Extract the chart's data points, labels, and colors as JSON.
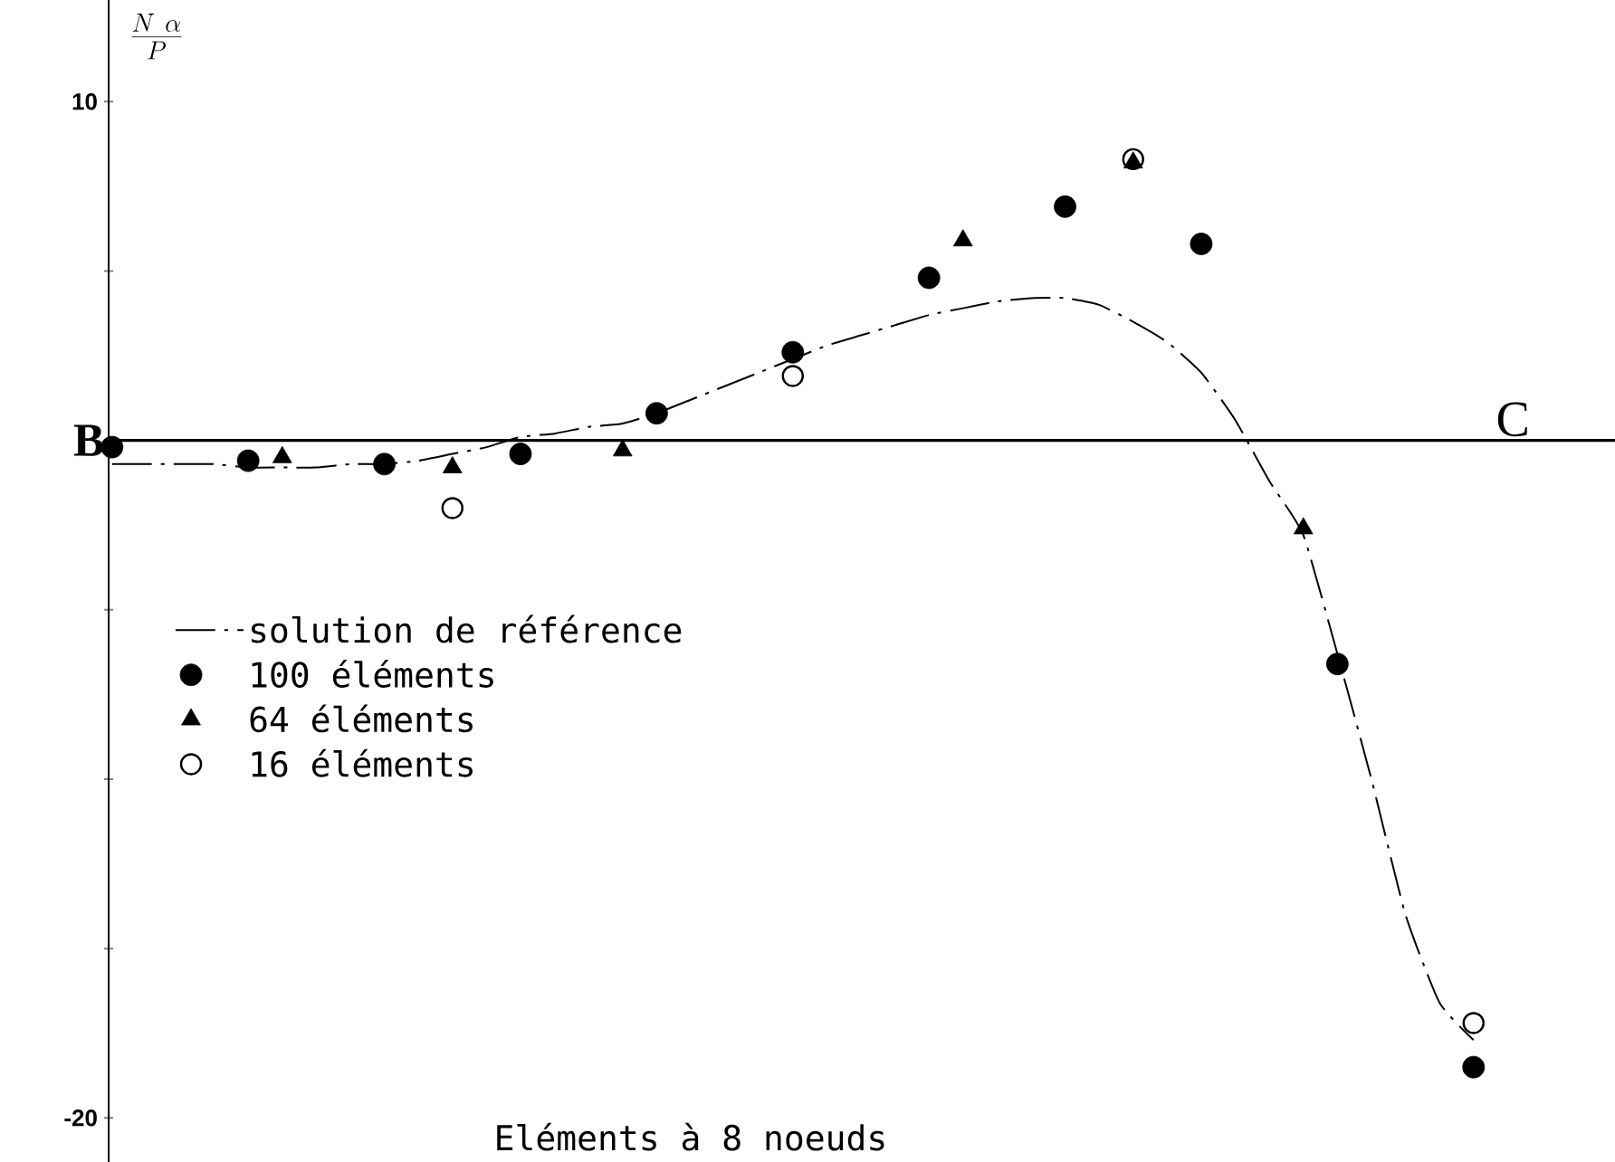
{
  "chart_data": {
    "type": "scatter",
    "ylabel": "\\frac{N\\ \\alpha}{P}",
    "categories": [
      null,
      null,
      null,
      null,
      null,
      null,
      null,
      null,
      null,
      null,
      null,
      null,
      null,
      null,
      null,
      null,
      null,
      null,
      null,
      null,
      null,
      null,
      null,
      null,
      null,
      null,
      null,
      null,
      null,
      null,
      null,
      null,
      null,
      null,
      null,
      null,
      null,
      null,
      null,
      null,
      null
    ],
    "ylim": [
      -21.3,
      13
    ],
    "yticks": [
      {
        "value": -20,
        "label": "-20"
      },
      {
        "value": -15,
        "label": null
      },
      {
        "value": -10,
        "label": null
      },
      {
        "value": -5,
        "label": null
      },
      {
        "value": 0,
        "label": null
      },
      {
        "value": 5,
        "label": null
      },
      {
        "value": 10,
        "label": "10"
      }
    ],
    "tick_labels": "y",
    "legend": "left",
    "ref_lines": [
      {
        "axis": "y",
        "value": 0
      }
    ],
    "annotations": [
      "B",
      "C",
      "Eléments à 8 noeuds"
    ],
    "series": [
      {
        "name": "solution de référence",
        "type": "line",
        "color": "#000000",
        "line_style": "dashed",
        "marker": "none",
        "values": [
          -0.7,
          -0.7,
          -0.7,
          -0.7,
          -0.8,
          -0.8,
          -0.8,
          -0.7,
          -0.7,
          -0.6,
          -0.4,
          -0.2,
          0.1,
          0.2,
          0.4,
          0.5,
          0.8,
          1.2,
          1.6,
          2.0,
          2.4,
          2.8,
          3.1,
          3.4,
          3.7,
          3.9,
          4.1,
          4.2,
          4.2,
          4.0,
          3.5,
          2.9,
          2.0,
          0.6,
          -1.2,
          -2.8,
          -6.3,
          -10,
          -14,
          -16.6,
          -17.7
        ]
      },
      {
        "name": "100 éléments",
        "type": "scatter",
        "color": "#000000",
        "marker": "circle",
        "values": [
          -0.2,
          null,
          null,
          null,
          -0.6,
          null,
          null,
          null,
          -0.7,
          null,
          null,
          null,
          -0.4,
          null,
          null,
          null,
          0.8,
          null,
          null,
          null,
          2.6,
          null,
          null,
          null,
          4.8,
          null,
          null,
          null,
          6.9,
          null,
          null,
          null,
          5.8,
          null,
          null,
          null,
          -6.6,
          null,
          null,
          null,
          -18.5
        ]
      },
      {
        "name": "64 éléments",
        "type": "scatter",
        "color": "#000000",
        "marker": "triangle",
        "values": [
          null,
          null,
          null,
          null,
          null,
          -0.5,
          null,
          null,
          null,
          null,
          -0.8,
          null,
          null,
          null,
          null,
          -0.3,
          null,
          null,
          null,
          null,
          null,
          null,
          null,
          null,
          null,
          5.9,
          null,
          null,
          null,
          null,
          8.2,
          null,
          null,
          null,
          null,
          -2.6,
          null,
          null,
          null,
          null,
          null
        ]
      },
      {
        "name": "16 éléments",
        "type": "scatter",
        "color": "#000000",
        "marker": "circle-open",
        "values": [
          null,
          null,
          null,
          null,
          null,
          null,
          null,
          null,
          null,
          null,
          -2.0,
          null,
          null,
          null,
          null,
          null,
          null,
          null,
          null,
          null,
          1.9,
          null,
          null,
          null,
          null,
          null,
          null,
          null,
          null,
          null,
          8.3,
          null,
          null,
          null,
          null,
          null,
          null,
          null,
          null,
          null,
          -17.2
        ]
      }
    ]
  }
}
